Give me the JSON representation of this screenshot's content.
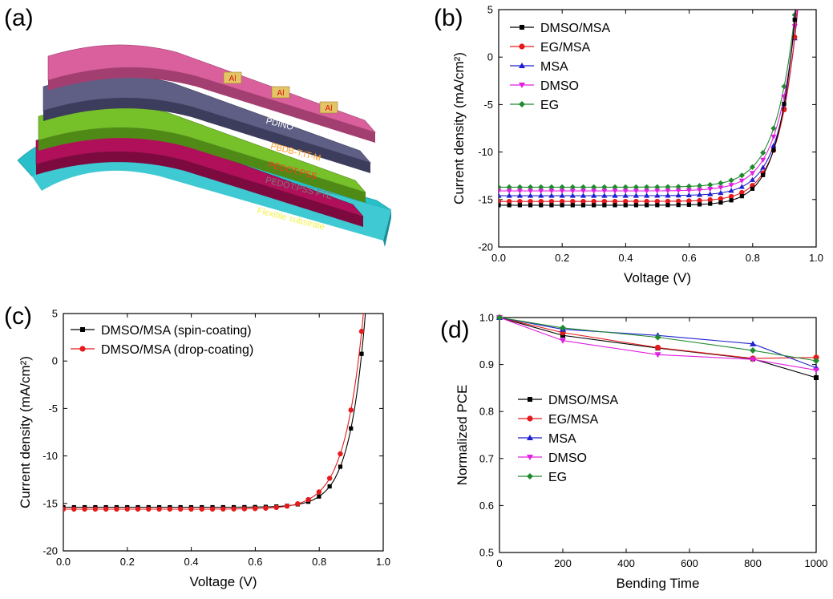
{
  "panels": {
    "a": {
      "label": "(a)",
      "layers": [
        "PDINO",
        "PBDB-T:IT-M",
        "PEDOT:PSS",
        "PEDOT:PSS FTE",
        "Flexible substrate"
      ],
      "electrodes": [
        "Al",
        "Al",
        "Al"
      ],
      "colors": {
        "top": "#d9609d",
        "pbdb": "#5f5f86",
        "pedot": "#76c02a",
        "fte": "#b0105a",
        "substrate": "#26bfca",
        "al": "#e3c566"
      }
    },
    "b": {
      "label": "(b)"
    },
    "c": {
      "label": "(c)"
    },
    "d": {
      "label": "(d)"
    }
  },
  "chart_data": [
    {
      "id": "b",
      "type": "line",
      "xlabel": "Voltage (V)",
      "ylabel": "Current density (mA/cm²)",
      "xlim": [
        0.0,
        1.0
      ],
      "ylim": [
        -20,
        5
      ],
      "xticks": [
        "0.0",
        "0.2",
        "0.4",
        "0.6",
        "0.8",
        "1.0"
      ],
      "yticks": [
        "5",
        "0",
        "-5",
        "-10",
        "-15",
        "-20"
      ],
      "legend_position": "top-left",
      "series": [
        {
          "name": "DMSO/MSA",
          "color": "#000000",
          "marker": "square",
          "jsc": -15.6,
          "voc": 0.92,
          "n": 0.055
        },
        {
          "name": "EG/MSA",
          "color": "#e41a1c",
          "marker": "circle",
          "jsc": -15.2,
          "voc": 0.925,
          "n": 0.057
        },
        {
          "name": "MSA",
          "color": "#1f1fd0",
          "marker": "triangle-up",
          "jsc": -14.6,
          "voc": 0.925,
          "n": 0.058
        },
        {
          "name": "DMSO",
          "color": "#e020e0",
          "marker": "triangle-down",
          "jsc": -14.1,
          "voc": 0.92,
          "n": 0.06
        },
        {
          "name": "EG",
          "color": "#1f8a30",
          "marker": "diamond",
          "jsc": -13.7,
          "voc": 0.915,
          "n": 0.062
        }
      ]
    },
    {
      "id": "c",
      "type": "line",
      "xlabel": "Voltage (V)",
      "ylabel": "Current density (mA/cm²)",
      "xlim": [
        0.0,
        1.0
      ],
      "ylim": [
        -20,
        5
      ],
      "xticks": [
        "0.0",
        "0.2",
        "0.4",
        "0.6",
        "0.8",
        "1.0"
      ],
      "yticks": [
        "5",
        "0",
        "-5",
        "-10",
        "-15",
        "-20"
      ],
      "legend_position": "top-left",
      "series": [
        {
          "name": "DMSO/MSA (spin-coating)",
          "color": "#000000",
          "marker": "square",
          "jsc": -15.4,
          "voc": 0.93,
          "n": 0.05
        },
        {
          "name": "DMSO/MSA (drop-coating)",
          "color": "#e41a1c",
          "marker": "circle",
          "jsc": -15.6,
          "voc": 0.922,
          "n": 0.057
        }
      ]
    },
    {
      "id": "d",
      "type": "line",
      "xlabel": "Bending Time",
      "ylabel": "Normalized PCE",
      "xlim": [
        0,
        1000
      ],
      "ylim": [
        0.5,
        1.0
      ],
      "xticks": [
        "0",
        "200",
        "400",
        "600",
        "800",
        "1000"
      ],
      "yticks": [
        "1.0",
        "0.9",
        "0.8",
        "0.7",
        "0.6",
        "0.5"
      ],
      "legend_position": "center-left",
      "x": [
        0,
        200,
        500,
        800,
        1000
      ],
      "series": [
        {
          "name": "DMSO/MSA",
          "color": "#000000",
          "marker": "square",
          "values": [
            1.0,
            0.962,
            0.935,
            0.912,
            0.872
          ]
        },
        {
          "name": "EG/MSA",
          "color": "#e41a1c",
          "marker": "circle",
          "values": [
            1.0,
            0.968,
            0.936,
            0.913,
            0.915
          ]
        },
        {
          "name": "MSA",
          "color": "#1f1fd0",
          "marker": "triangle-up",
          "values": [
            1.0,
            0.975,
            0.962,
            0.944,
            0.893
          ]
        },
        {
          "name": "DMSO",
          "color": "#e020e0",
          "marker": "triangle-down",
          "values": [
            1.0,
            0.951,
            0.921,
            0.911,
            0.888
          ]
        },
        {
          "name": "EG",
          "color": "#1f8a30",
          "marker": "diamond",
          "values": [
            1.0,
            0.978,
            0.958,
            0.93,
            0.908
          ]
        }
      ]
    }
  ]
}
